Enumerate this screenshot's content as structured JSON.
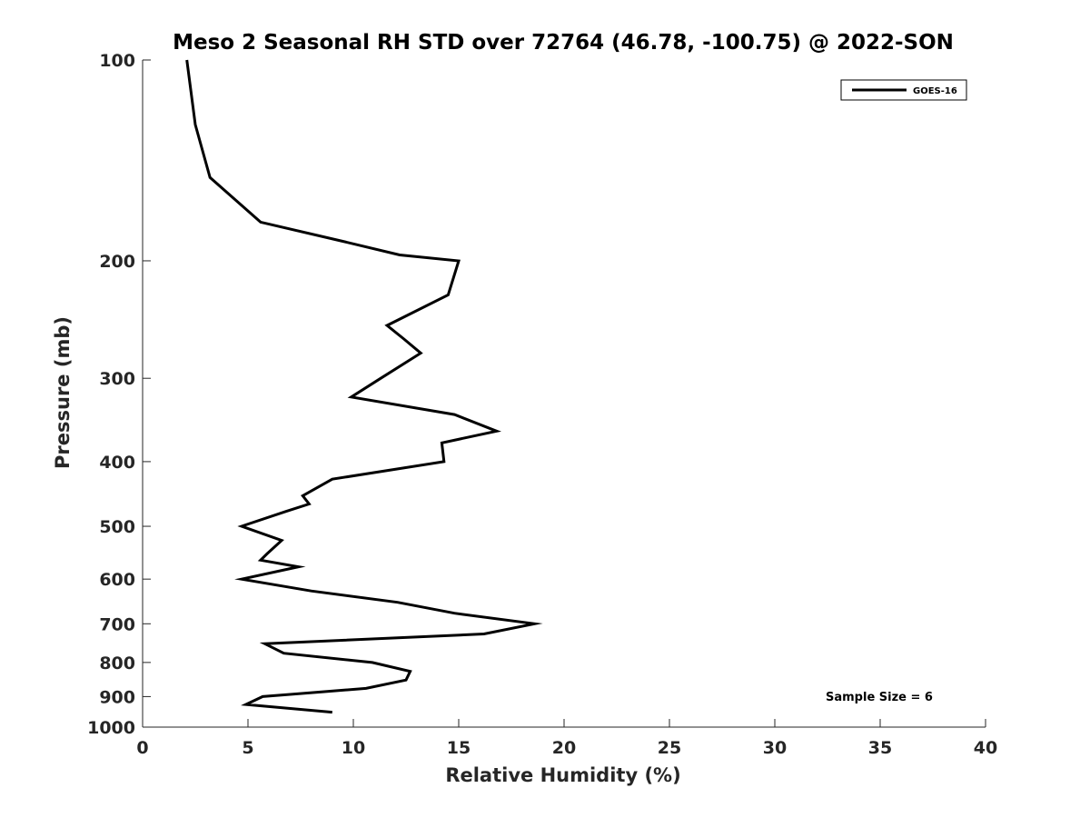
{
  "chart_data": {
    "type": "line",
    "title": "Meso 2 Seasonal RH STD over 72764 (46.78, -100.75) @ 2022-SON",
    "xlabel": "Relative Humidity (%)",
    "ylabel": "Pressure (mb)",
    "xlim": [
      0,
      40
    ],
    "ylim": [
      100,
      1000
    ],
    "y_scale": "log",
    "y_reversed": true,
    "grid": false,
    "x_ticks": [
      0,
      5,
      10,
      15,
      20,
      25,
      30,
      35,
      40
    ],
    "x_tick_labels": [
      "0",
      "5",
      "10",
      "15",
      "20",
      "25",
      "30",
      "35",
      "40"
    ],
    "y_ticks": [
      100,
      200,
      300,
      400,
      500,
      600,
      700,
      800,
      900,
      1000
    ],
    "y_tick_labels": [
      "100",
      "200",
      "300",
      "400",
      "500",
      "600",
      "700",
      "800",
      "900",
      "1000"
    ],
    "legend_position": "top-right",
    "series": [
      {
        "name": "GOES-16",
        "color": "#000000",
        "points": [
          [
            2.1,
            100
          ],
          [
            2.5,
            125
          ],
          [
            3.2,
            150
          ],
          [
            5.6,
            175
          ],
          [
            9.5,
            187
          ],
          [
            12.2,
            196
          ],
          [
            15.0,
            200
          ],
          [
            14.5,
            225
          ],
          [
            11.6,
            250
          ],
          [
            12.4,
            262
          ],
          [
            13.2,
            275
          ],
          [
            11.3,
            300
          ],
          [
            9.9,
            320
          ],
          [
            14.8,
            340
          ],
          [
            16.8,
            360
          ],
          [
            14.2,
            375
          ],
          [
            14.3,
            400
          ],
          [
            9.0,
            425
          ],
          [
            7.6,
            450
          ],
          [
            7.9,
            463
          ],
          [
            6.8,
            475
          ],
          [
            4.7,
            500
          ],
          [
            6.6,
            525
          ],
          [
            5.9,
            550
          ],
          [
            5.6,
            562
          ],
          [
            7.4,
            575
          ],
          [
            4.7,
            600
          ],
          [
            8.0,
            625
          ],
          [
            12.1,
            650
          ],
          [
            14.8,
            675
          ],
          [
            18.6,
            700
          ],
          [
            16.2,
            725
          ],
          [
            5.8,
            750
          ],
          [
            6.7,
            775
          ],
          [
            10.9,
            800
          ],
          [
            12.7,
            825
          ],
          [
            12.5,
            850
          ],
          [
            10.6,
            875
          ],
          [
            5.7,
            900
          ],
          [
            4.9,
            925
          ],
          [
            9.0,
            950
          ]
        ]
      }
    ],
    "annotations": [
      {
        "text": "Sample Size = 6",
        "position": "bottom-right"
      }
    ]
  }
}
